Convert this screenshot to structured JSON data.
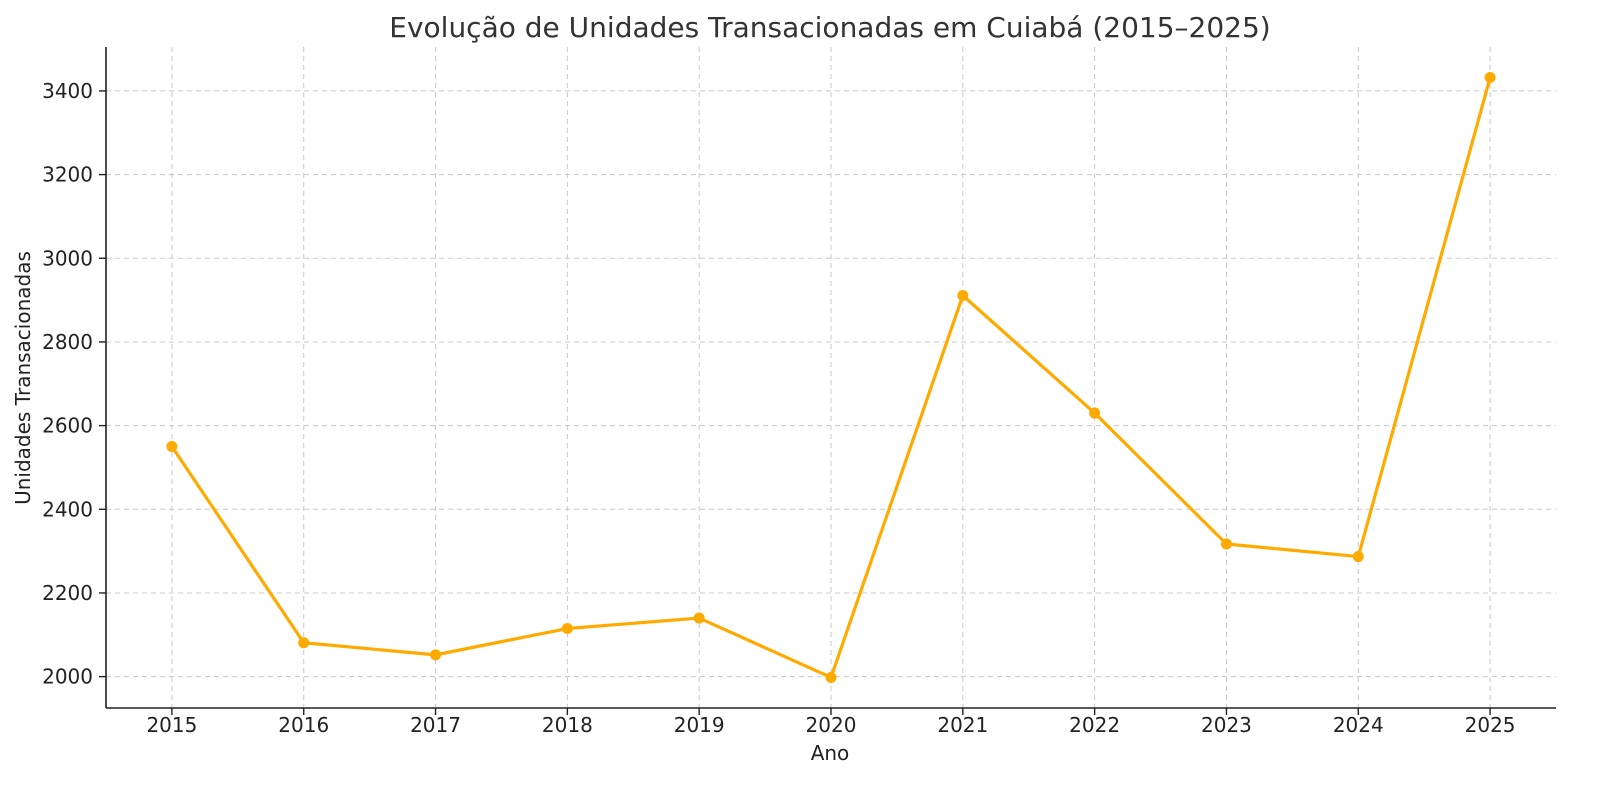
{
  "chart_data": {
    "type": "line",
    "title": "Evolução de Unidades Transacionadas em Cuiabá (2015–2025)",
    "xlabel": "Ano",
    "ylabel": "Unidades Transacionadas",
    "x": [
      "2015",
      "2016",
      "2017",
      "2018",
      "2019",
      "2020",
      "2021",
      "2022",
      "2023",
      "2024",
      "2025"
    ],
    "series": [
      {
        "values": [
          2550,
          2081,
          2052,
          2115,
          2140,
          1998,
          2911,
          2630,
          2317,
          2287,
          3432
        ],
        "color": "#FFAA00"
      }
    ],
    "yticks": [
      2000,
      2200,
      2400,
      2600,
      2800,
      3000,
      3200,
      3400
    ],
    "ylim": [
      1925,
      3505
    ],
    "xlim": [
      2014.5,
      2025.5
    ],
    "grid": true,
    "legend": "none",
    "marker": "circle"
  }
}
